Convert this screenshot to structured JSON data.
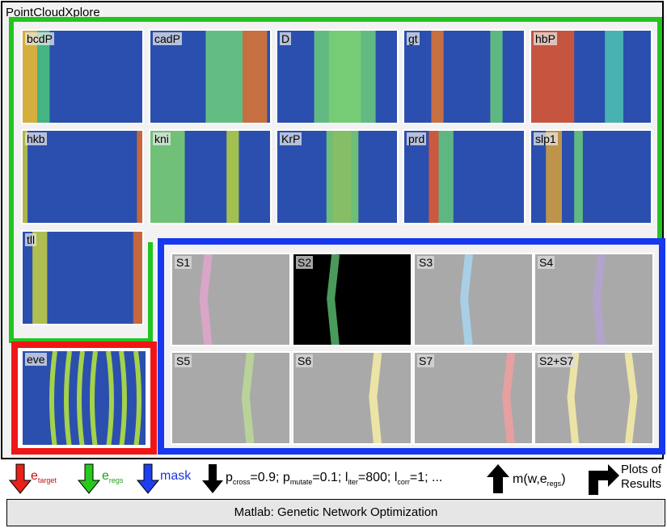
{
  "app": {
    "title": "PointCloudXplore"
  },
  "genes": [
    "bcdP",
    "cadP",
    "D",
    "gt",
    "hbP",
    "hkb",
    "kni",
    "KrP",
    "prd",
    "slp1",
    "tll"
  ],
  "eve_label": "eve",
  "selections": [
    "S1",
    "S2",
    "S3",
    "S4",
    "S5",
    "S6",
    "S7",
    "S2+S7"
  ],
  "selection_colors": [
    "#d9a6c8",
    "#4a9a5c",
    "#a8cfe6",
    "#b3a3cc",
    "#b9d29a",
    "#ece4a6",
    "#e6a0a0",
    "#ece4a6"
  ],
  "frame_colors": {
    "green": "#22c51f",
    "blue": "#1738ef",
    "red": "#f01616"
  },
  "bottom": {
    "e_target": "e",
    "e_target_sub": "target",
    "e_regs": "e",
    "e_regs_sub": "regs",
    "mask": "mask",
    "p": "p",
    "p_cross_sub": "cross",
    "p_cross_val": "=0.9;",
    "p_mutate_sub": "mutate",
    "p_mutate_val": "=0.1;",
    "l": "l",
    "l_iter_sub": "iter",
    "l_iter_val": "=800;",
    "l_corr_sub": "corr",
    "l_corr_val": "=1; ...",
    "m_func": "m(w,e",
    "m_func_sub": "regs",
    "m_func_close": ")",
    "plots_line1": "Plots of",
    "plots_line2": "Results"
  },
  "matlab": {
    "label": "Matlab: Genetic Network Optimization"
  }
}
